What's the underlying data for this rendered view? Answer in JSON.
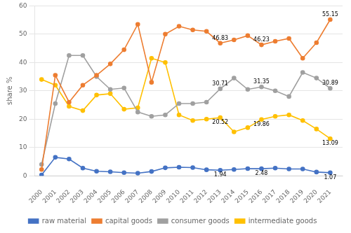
{
  "chart_data": {
    "type": "line",
    "x": [
      2000,
      2001,
      2002,
      2003,
      2004,
      2005,
      2006,
      2007,
      2008,
      2009,
      2010,
      2011,
      2012,
      2013,
      2014,
      2015,
      2016,
      2017,
      2018,
      2019,
      2020,
      2021
    ],
    "xlim": [
      1999.5,
      2021.9
    ],
    "xticks": [
      2000,
      2001,
      2002,
      2003,
      2004,
      2005,
      2006,
      2007,
      2008,
      2009,
      2010,
      2011,
      2012,
      2013,
      2014,
      2015,
      2016,
      2017,
      2018,
      2019,
      2020,
      2021
    ],
    "ylabel": "share %",
    "ylim": [
      0,
      60
    ],
    "yticks": [
      0,
      10,
      20,
      30,
      40,
      50,
      60
    ],
    "grid": "y",
    "legend": "bottom",
    "series": [
      {
        "name": "raw material",
        "color": "#4472c4",
        "marker": "o",
        "values": [
          0.3,
          6.5,
          5.9,
          2.7,
          1.6,
          1.4,
          1.1,
          0.9,
          1.5,
          2.8,
          3.0,
          2.9,
          2.1,
          1.94,
          2.2,
          2.5,
          2.48,
          2.7,
          2.4,
          2.4,
          1.3,
          1.07
        ]
      },
      {
        "name": "capital goods",
        "color": "#ed7d31",
        "marker": "o",
        "values": [
          2.2,
          35.5,
          26.0,
          32.0,
          35.5,
          39.5,
          44.5,
          53.5,
          33.0,
          50.0,
          52.8,
          51.5,
          51.0,
          46.83,
          48.0,
          49.5,
          46.23,
          47.5,
          48.5,
          41.5,
          47.0,
          55.15
        ]
      },
      {
        "name": "consumer goods",
        "color": "#a0a0a0",
        "marker": "o",
        "values": [
          4.0,
          25.5,
          42.5,
          42.5,
          35.0,
          30.5,
          31.0,
          22.5,
          21.0,
          21.5,
          25.5,
          25.5,
          26.0,
          30.71,
          34.5,
          30.5,
          31.35,
          30.0,
          28.0,
          36.5,
          34.5,
          30.89
        ]
      },
      {
        "name": "intermediate goods",
        "color": "#ffc000",
        "marker": "o",
        "values": [
          34.0,
          32.0,
          24.5,
          23.0,
          28.5,
          29.0,
          23.5,
          24.0,
          41.5,
          40.0,
          21.5,
          19.5,
          20.0,
          20.52,
          15.5,
          17.0,
          19.86,
          21.0,
          21.5,
          19.5,
          16.5,
          13.09
        ]
      }
    ],
    "annotations": [
      {
        "x": 2013,
        "y": 46.83,
        "text": "46.83",
        "position": "above"
      },
      {
        "x": 2016,
        "y": 46.23,
        "text": "46.23",
        "position": "above"
      },
      {
        "x": 2021,
        "y": 55.15,
        "text": "55.15",
        "position": "above"
      },
      {
        "x": 2013,
        "y": 30.71,
        "text": "30.71",
        "position": "above"
      },
      {
        "x": 2016,
        "y": 31.35,
        "text": "31.35",
        "position": "above"
      },
      {
        "x": 2021,
        "y": 30.89,
        "text": "30.89",
        "position": "above"
      },
      {
        "x": 2013,
        "y": 20.52,
        "text": "20.52",
        "position": "below"
      },
      {
        "x": 2016,
        "y": 19.86,
        "text": "19.86",
        "position": "below"
      },
      {
        "x": 2021,
        "y": 13.09,
        "text": "13.09",
        "position": "below"
      },
      {
        "x": 2013,
        "y": 1.94,
        "text": "1.94",
        "position": "below"
      },
      {
        "x": 2016,
        "y": 2.48,
        "text": "2.48",
        "position": "below"
      },
      {
        "x": 2021,
        "y": 1.07,
        "text": "1.07",
        "position": "below"
      }
    ]
  }
}
